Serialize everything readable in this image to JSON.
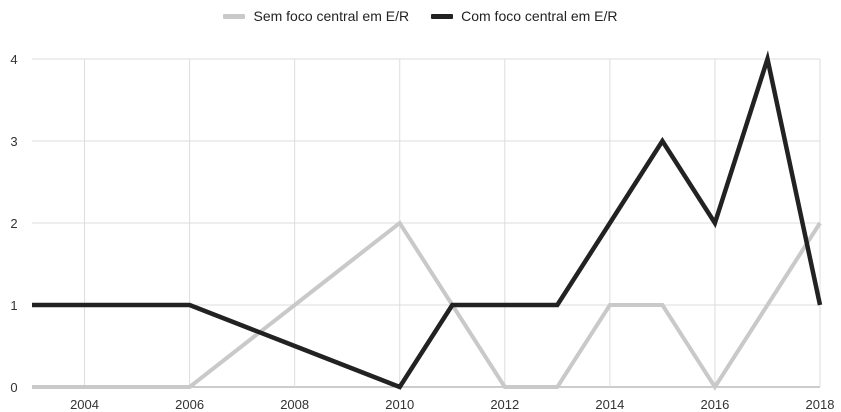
{
  "chart_data": {
    "type": "line",
    "legend_position": "top",
    "grid": true,
    "x": [
      2003,
      2004,
      2005,
      2006,
      2007,
      2008,
      2009,
      2010,
      2011,
      2012,
      2013,
      2014,
      2015,
      2016,
      2017,
      2018
    ],
    "series": [
      {
        "name": "Sem foco central em E/R",
        "color": "#c9c9c9",
        "values": [
          0,
          0,
          0,
          0,
          0.5,
          1,
          1.5,
          2,
          1,
          0,
          0,
          1,
          1,
          0,
          1,
          2
        ]
      },
      {
        "name": "Com foco central em E/R",
        "color": "#222222",
        "values": [
          1,
          1,
          1,
          1,
          0.75,
          0.5,
          0.25,
          0,
          1,
          1,
          1,
          2,
          3,
          2,
          4,
          1
        ]
      }
    ],
    "x_ticks": [
      2004,
      2006,
      2008,
      2010,
      2012,
      2014,
      2016,
      2018
    ],
    "y_ticks": [
      0,
      1,
      2,
      3,
      4
    ],
    "xlim": [
      2003,
      2018
    ],
    "ylim": [
      0,
      4
    ]
  }
}
